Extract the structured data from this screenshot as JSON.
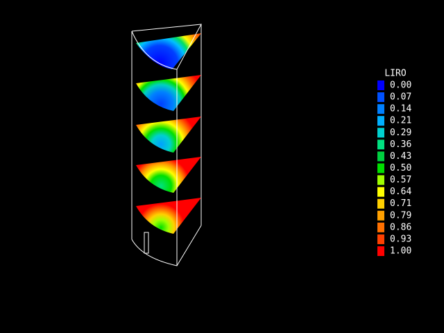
{
  "legend": {
    "title": "LIRO",
    "entries": [
      {
        "label": "0.00",
        "color": "#0000ff"
      },
      {
        "label": "0.07",
        "color": "#0050ff"
      },
      {
        "label": "0.14",
        "color": "#0080ff"
      },
      {
        "label": "0.21",
        "color": "#00b0ff"
      },
      {
        "label": "0.29",
        "color": "#00d0d0"
      },
      {
        "label": "0.36",
        "color": "#00e080"
      },
      {
        "label": "0.43",
        "color": "#00d040"
      },
      {
        "label": "0.50",
        "color": "#00e000"
      },
      {
        "label": "0.57",
        "color": "#a0ff00"
      },
      {
        "label": "0.64",
        "color": "#ffff00"
      },
      {
        "label": "0.71",
        "color": "#ffd000"
      },
      {
        "label": "0.79",
        "color": "#ffa000"
      },
      {
        "label": "0.86",
        "color": "#ff7000"
      },
      {
        "label": "0.93",
        "color": "#ff4000"
      },
      {
        "label": "1.00",
        "color": "#ff0000"
      }
    ]
  }
}
